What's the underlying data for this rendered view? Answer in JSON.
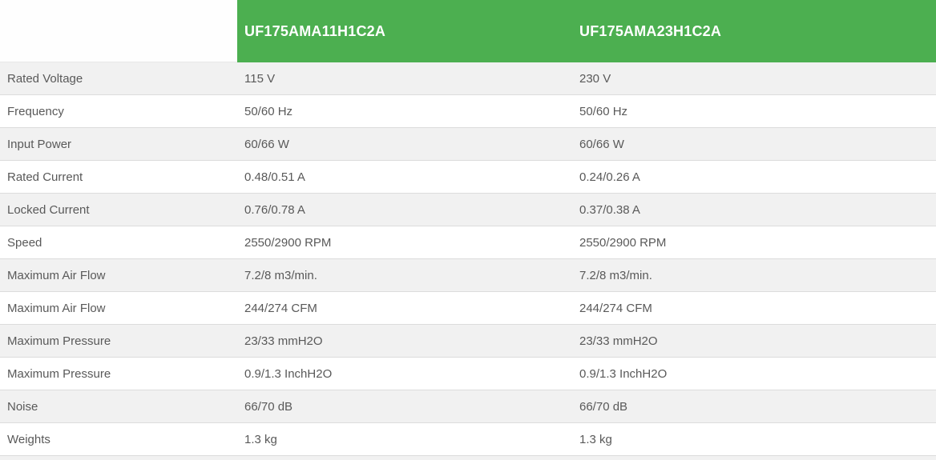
{
  "table": {
    "header": {
      "col1": "UF175AMA11H1C2A",
      "col2": "UF175AMA23H1C2A"
    },
    "rows": [
      {
        "label": "Rated Voltage",
        "col1": "115 V",
        "col2": "230 V"
      },
      {
        "label": "Frequency",
        "col1": "50/60 Hz",
        "col2": "50/60 Hz"
      },
      {
        "label": "Input Power",
        "col1": "60/66 W",
        "col2": "60/66 W"
      },
      {
        "label": "Rated Current",
        "col1": "0.48/0.51 A",
        "col2": "0.24/0.26 A"
      },
      {
        "label": "Locked Current",
        "col1": "0.76/0.78 A",
        "col2": "0.37/0.38 A"
      },
      {
        "label": "Speed",
        "col1": "2550/2900 RPM",
        "col2": "2550/2900 RPM"
      },
      {
        "label": "Maximum Air Flow",
        "col1": "7.2/8 m3/min.",
        "col2": "7.2/8 m3/min."
      },
      {
        "label": "Maximum Air Flow",
        "col1": "244/274 CFM",
        "col2": "244/274 CFM"
      },
      {
        "label": "Maximum Pressure",
        "col1": "23/33 mmH2O",
        "col2": "23/33 mmH2O"
      },
      {
        "label": "Maximum Pressure",
        "col1": "0.9/1.3 InchH2O",
        "col2": "0.9/1.3 InchH2O"
      },
      {
        "label": "Noise",
        "col1": "66/70 dB",
        "col2": "66/70 dB"
      },
      {
        "label": "Weights",
        "col1": "1.3 kg",
        "col2": "1.3 kg"
      }
    ]
  },
  "colors": {
    "header_bg": "#4caf50",
    "header_text": "#ffffff",
    "row_alt_bg": "#f1f1f1",
    "row_bg": "#ffffff",
    "border": "#dcdcdc",
    "text": "#595959"
  }
}
